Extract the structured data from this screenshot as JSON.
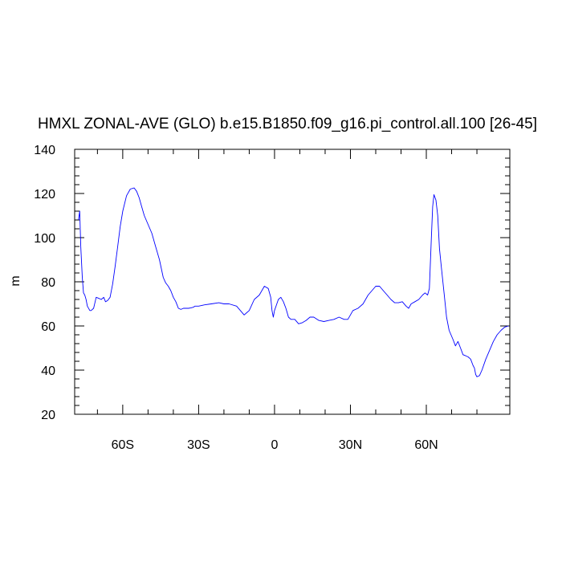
{
  "chart_data": {
    "type": "line",
    "title": "HMXL ZONAL-AVE (GLO) b.e15.B1850.f09_g16.pi_control.all.100 [26-45]",
    "xlabel": "",
    "ylabel": "m",
    "xlim": [
      -79,
      93
    ],
    "ylim": [
      20,
      140
    ],
    "x_ticks": [
      {
        "value": -60,
        "label": "60S"
      },
      {
        "value": -30,
        "label": "30S"
      },
      {
        "value": 0,
        "label": "0"
      },
      {
        "value": 30,
        "label": "30N"
      },
      {
        "value": 60,
        "label": "60N"
      }
    ],
    "y_ticks": [
      {
        "value": 20,
        "label": "20"
      },
      {
        "value": 40,
        "label": "40"
      },
      {
        "value": 60,
        "label": "60"
      },
      {
        "value": 80,
        "label": "80"
      },
      {
        "value": 100,
        "label": "100"
      },
      {
        "value": 120,
        "label": "120"
      },
      {
        "value": 140,
        "label": "140"
      }
    ],
    "grid": false,
    "colors": {
      "line": "#0000ff",
      "axis": "#000000",
      "background": "#ffffff"
    },
    "series": [
      {
        "x": [
          -77.5,
          -77.0,
          -76.6,
          -76.0,
          -75.5,
          -75.0,
          -74.5,
          -74.0,
          -73.0,
          -72.5,
          -71.5,
          -70.5,
          -69.5,
          -68.5,
          -67.5,
          -66.8,
          -66.0,
          -65.0,
          -64.0,
          -63.0,
          -62.0,
          -61.0,
          -60.0,
          -58.5,
          -57.0,
          -55.5,
          -54.5,
          -53.5,
          -52.5,
          -51.5,
          -50.0,
          -48.5,
          -47.0,
          -45.5,
          -44.0,
          -43.0,
          -42.0,
          -41.0,
          -40.0,
          -39.0,
          -38.0,
          -37.0,
          -36.0,
          -35.0,
          -34.0,
          -33.0,
          -32.0,
          -31.5,
          -31.0,
          -30.0,
          -28.0,
          -25.0,
          -22.0,
          -20.0,
          -18.0,
          -15.0,
          -13.5,
          -12.0,
          -11.0,
          -10.0,
          -8.0,
          -6.0,
          -4.0,
          -2.5,
          -1.5,
          -1.0,
          -0.5,
          0.0,
          1.5,
          2.5,
          3.5,
          4.5,
          5.5,
          6.5,
          8.0,
          9.5,
          11.0,
          12.5,
          14.0,
          15.5,
          17.5,
          19.5,
          21.5,
          23.5,
          25.5,
          27.5,
          29.0,
          31.0,
          33.0,
          35.0,
          37.0,
          38.5,
          40.0,
          41.5,
          43.0,
          44.5,
          46.0,
          47.5,
          49.0,
          50.5,
          52.0,
          53.0,
          54.0,
          55.5,
          57.0,
          58.5,
          59.5,
          60.5,
          61.2,
          62.0,
          62.5,
          63.0,
          63.8,
          64.5,
          65.2,
          66.0,
          67.0,
          68.0,
          69.0,
          70.5,
          71.5,
          72.5,
          73.5,
          74.5,
          75.5,
          76.5,
          77.5,
          78.5,
          79.0,
          79.5,
          80.0,
          81.0,
          82.0,
          83.5,
          85.0,
          86.5,
          88.0,
          89.5,
          91.0,
          92.5
        ],
        "y": [
          108,
          112,
          96,
          82,
          75,
          74,
          72,
          69,
          67,
          67,
          68,
          73,
          72.5,
          72,
          73,
          71,
          71.5,
          73,
          79,
          87,
          96,
          105,
          112,
          119,
          122,
          122.5,
          121,
          118,
          114,
          110,
          106,
          102,
          96,
          90,
          82,
          79.5,
          78,
          76,
          73,
          71,
          68,
          67.5,
          68,
          68,
          68,
          68.2,
          68.5,
          69,
          69,
          69,
          69.5,
          70,
          70.5,
          70,
          70,
          69,
          67,
          65,
          66,
          67,
          72,
          74,
          78,
          77,
          73,
          67,
          64,
          67,
          72,
          73,
          71,
          68,
          64,
          63,
          63,
          61,
          61.5,
          62.5,
          64,
          64,
          62.5,
          62,
          62.5,
          63,
          64,
          63,
          63,
          67,
          68,
          70,
          74,
          76,
          78,
          78,
          76,
          74,
          72,
          70.5,
          70.5,
          71,
          69,
          68,
          70,
          71,
          72,
          74,
          75,
          74,
          77,
          100,
          114,
          119.5,
          117,
          110,
          95,
          86,
          75,
          64,
          58,
          54,
          51,
          53,
          50,
          47,
          46.5,
          46,
          45,
          42,
          41,
          38,
          37,
          37.5,
          40,
          45,
          49,
          53,
          56,
          58,
          59.5,
          60
        ]
      }
    ]
  }
}
